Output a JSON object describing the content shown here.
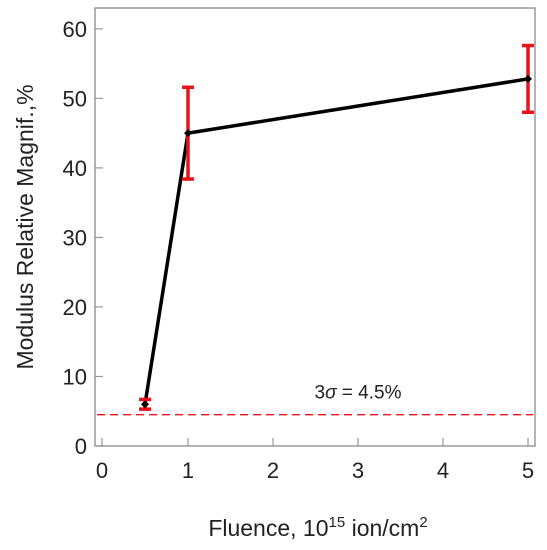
{
  "chart_data": {
    "type": "line",
    "xlabel": "Fluence, 10",
    "xlabel_sup": "15",
    "xlabel_mid": " ion/cm",
    "xlabel_sup2": "2",
    "ylabel": "Modulus Relative Magnif.,%",
    "x_ticks": [
      "0",
      "1",
      "2",
      "3",
      "4",
      "5"
    ],
    "y_ticks": [
      "0",
      "10",
      "20",
      "30",
      "40",
      "50",
      "60"
    ],
    "ylim": [
      0,
      63
    ],
    "grid": false,
    "series": [
      {
        "points": [
          {
            "x": 0.5,
            "y": 6.0,
            "err": 0.7
          },
          {
            "x": 1.0,
            "y": 45.0,
            "err": 6.6
          },
          {
            "x": 5.0,
            "y": 52.8,
            "err": 4.8
          }
        ],
        "line_color": "#000000",
        "errorbar_color": "#e8141b"
      }
    ],
    "reference_line": {
      "y": 4.5,
      "color": "#e8141b",
      "style": "dashed",
      "label_prefix": "3",
      "label_symbol": "σ",
      "label_suffix": " = 4.5%"
    }
  }
}
